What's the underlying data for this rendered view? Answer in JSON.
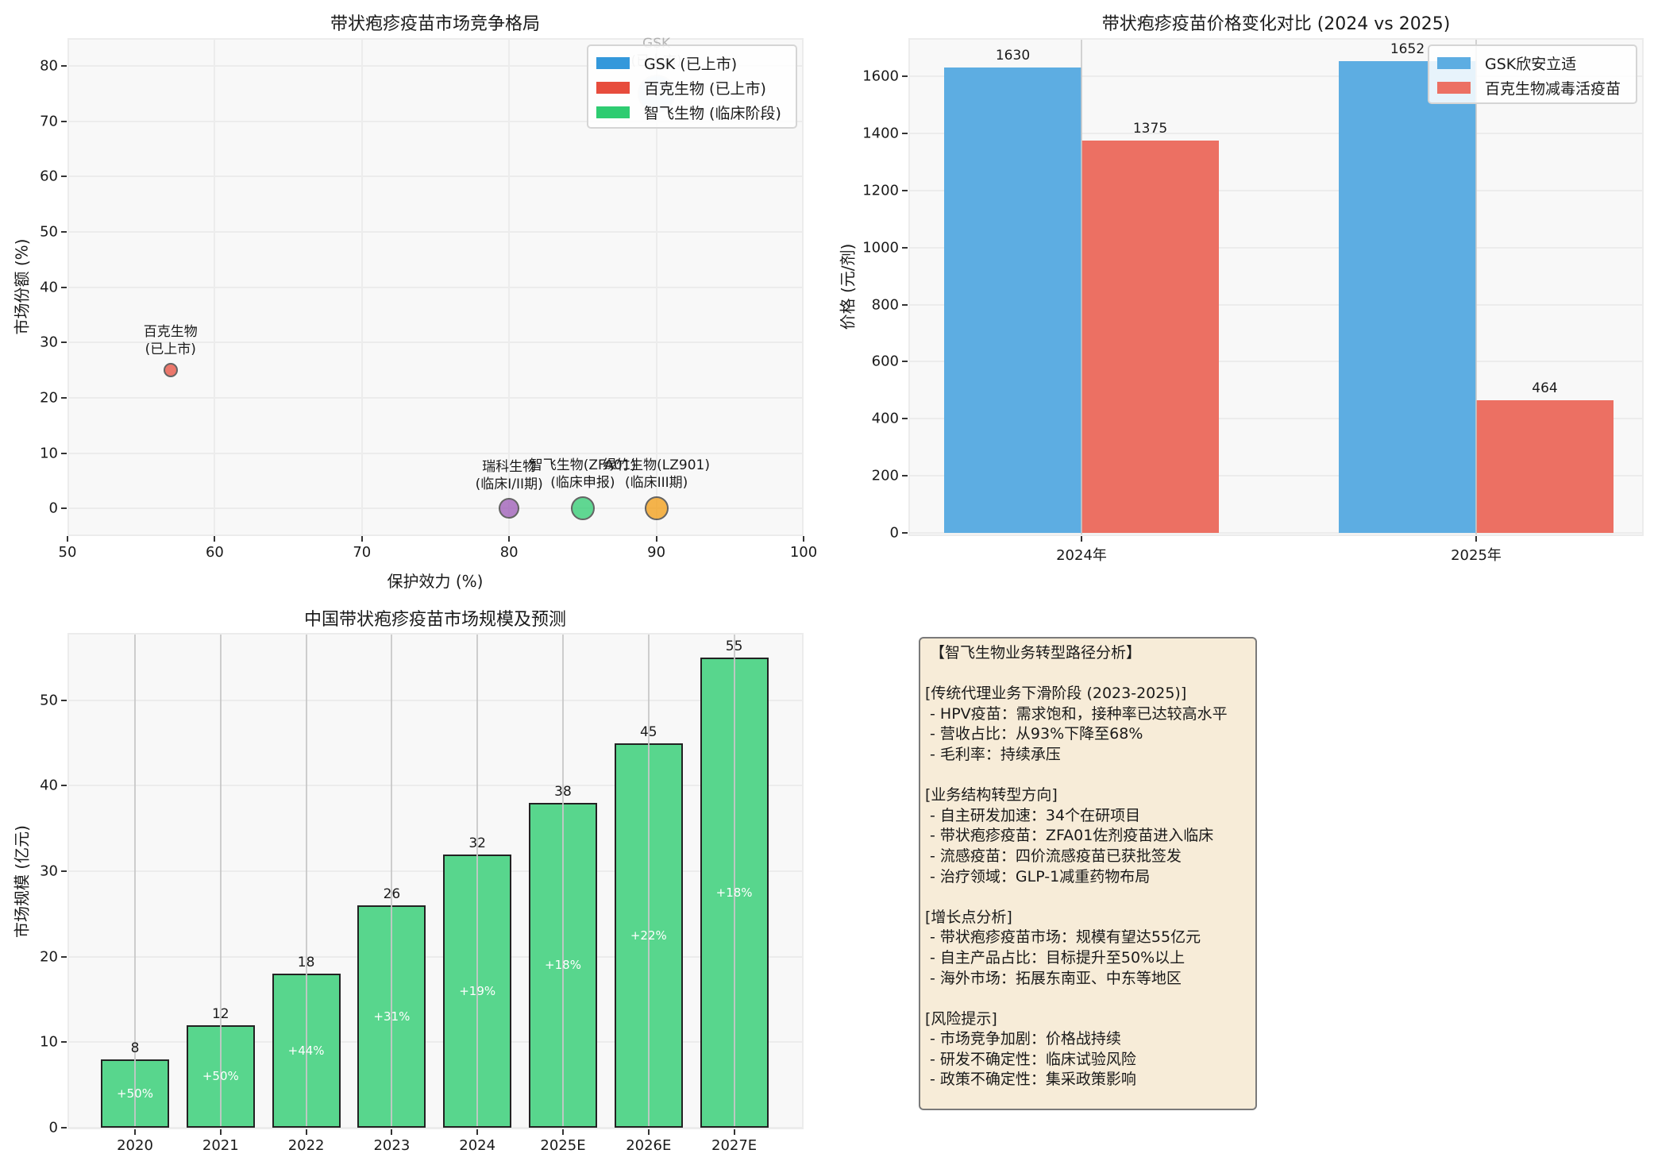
{
  "chart_data": [
    {
      "type": "scatter",
      "title": "带状疱疹疫苗市场竞争格局",
      "xlabel": "保护效力 (%)",
      "ylabel": "市场份额 (%)",
      "xlim": [
        50,
        100
      ],
      "ylim": [
        -5,
        85
      ],
      "xticks": [
        "50",
        "60",
        "70",
        "80",
        "90",
        "100"
      ],
      "yticks": [
        "0",
        "10",
        "20",
        "30",
        "40",
        "50",
        "60",
        "70",
        "80"
      ],
      "grid": true,
      "legend_position": "upper right",
      "legend": [
        {
          "label": "GSK (已上市)",
          "color": "#3498db"
        },
        {
          "label": "百克生物 (已上市)",
          "color": "#e74c3c"
        },
        {
          "label": "智飞生物 (临床阶段)",
          "color": "#2ecc71"
        }
      ],
      "points": [
        {
          "name": "GSK",
          "status": "(已上市)",
          "x": 90,
          "y": 75,
          "color": "#3498db",
          "size": 48
        },
        {
          "name": "百克生物",
          "status": "(已上市)",
          "x": 57,
          "y": 25,
          "color": "#e74c3c",
          "size": 18
        },
        {
          "name": "瑞科生物",
          "status": "(临床I/II期)",
          "x": 80,
          "y": 0,
          "color": "#9b59b6",
          "size": 26
        },
        {
          "name": "智飞生物(ZFA01)",
          "status": "(临床申报)",
          "x": 85,
          "y": 0,
          "color": "#2ecc71",
          "size": 30
        },
        {
          "name": "绿竹生物(LZ901)",
          "status": "(临床III期)",
          "x": 90,
          "y": 0,
          "color": "#f39c12",
          "size": 30
        }
      ]
    },
    {
      "type": "bar",
      "title": "带状疱疹疫苗价格变化对比 (2024 vs 2025)",
      "xlabel": "",
      "ylabel": "价格 (元/剂)",
      "ylim": [
        0,
        1730
      ],
      "yticks": [
        "0",
        "200",
        "400",
        "600",
        "800",
        "1000",
        "1200",
        "1400",
        "1600"
      ],
      "categories": [
        "2024年",
        "2025年"
      ],
      "legend_position": "upper right",
      "series": [
        {
          "name": "GSK欣安立适",
          "color": "#5dade2",
          "values": [
            1630,
            1652
          ]
        },
        {
          "name": "百克生物减毒活疫苗",
          "color": "#ec7063",
          "values": [
            1375,
            464
          ]
        }
      ]
    },
    {
      "type": "bar",
      "title": "中国带状疱疹疫苗市场规模及预测",
      "xlabel": "",
      "ylabel": "市场规模 (亿元)",
      "ylim": [
        0,
        58
      ],
      "yticks": [
        "0",
        "10",
        "20",
        "30",
        "40",
        "50"
      ],
      "categories": [
        "2020",
        "2021",
        "2022",
        "2023",
        "2024",
        "2025E",
        "2026E",
        "2027E"
      ],
      "values": [
        8,
        12,
        18,
        26,
        32,
        38,
        45,
        55
      ],
      "value_labels": [
        "8",
        "12",
        "18",
        "26",
        "32",
        "38",
        "45",
        "55"
      ],
      "growth_labels": [
        "+50%",
        "+50%",
        "+44%",
        "+31%",
        "+19%",
        "+18%",
        "+22%",
        "+18%"
      ],
      "color": "#58d68d"
    }
  ],
  "analysis_box": {
    "text": " 【智飞生物业务转型路径分析】\n\n[传统代理业务下滑阶段 (2023-2025)]\n - HPV疫苗：需求饱和，接种率已达较高水平\n - 营收占比：从93%下降至68%\n - 毛利率：持续承压\n\n[业务结构转型方向]\n - 自主研发加速：34个在研项目\n - 带状疱疹疫苗：ZFA01佐剂疫苗进入临床\n - 流感疫苗：四价流感疫苗已获批签发\n - 治疗领域：GLP-1减重药物布局\n\n[增长点分析]\n - 带状疱疹疫苗市场：规模有望达55亿元\n - 自主产品占比：目标提升至50%以上\n - 海外市场：拓展东南亚、中东等地区\n\n[风险提示]\n - 市场竞争加剧：价格战持续\n - 研发不确定性：临床试验风险\n - 政策不确定性：集采政策影响"
  }
}
